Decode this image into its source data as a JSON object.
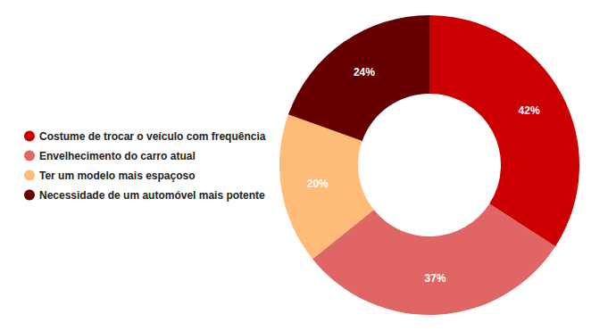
{
  "chart_data": {
    "type": "pie",
    "categories": [
      "Costume de trocar o veículo com frequência",
      "Envelhecimento do carro atual",
      "Ter um modelo mais espaçoso",
      "Necessidade de um automóvel mais potente"
    ],
    "values": [
      42,
      37,
      20,
      24
    ],
    "value_labels": [
      "42%",
      "37%",
      "20%",
      "24%"
    ],
    "colors": [
      "#cc0000",
      "#e06666",
      "#ffbb78",
      "#660000"
    ],
    "data_labels": true,
    "legend": "left"
  }
}
